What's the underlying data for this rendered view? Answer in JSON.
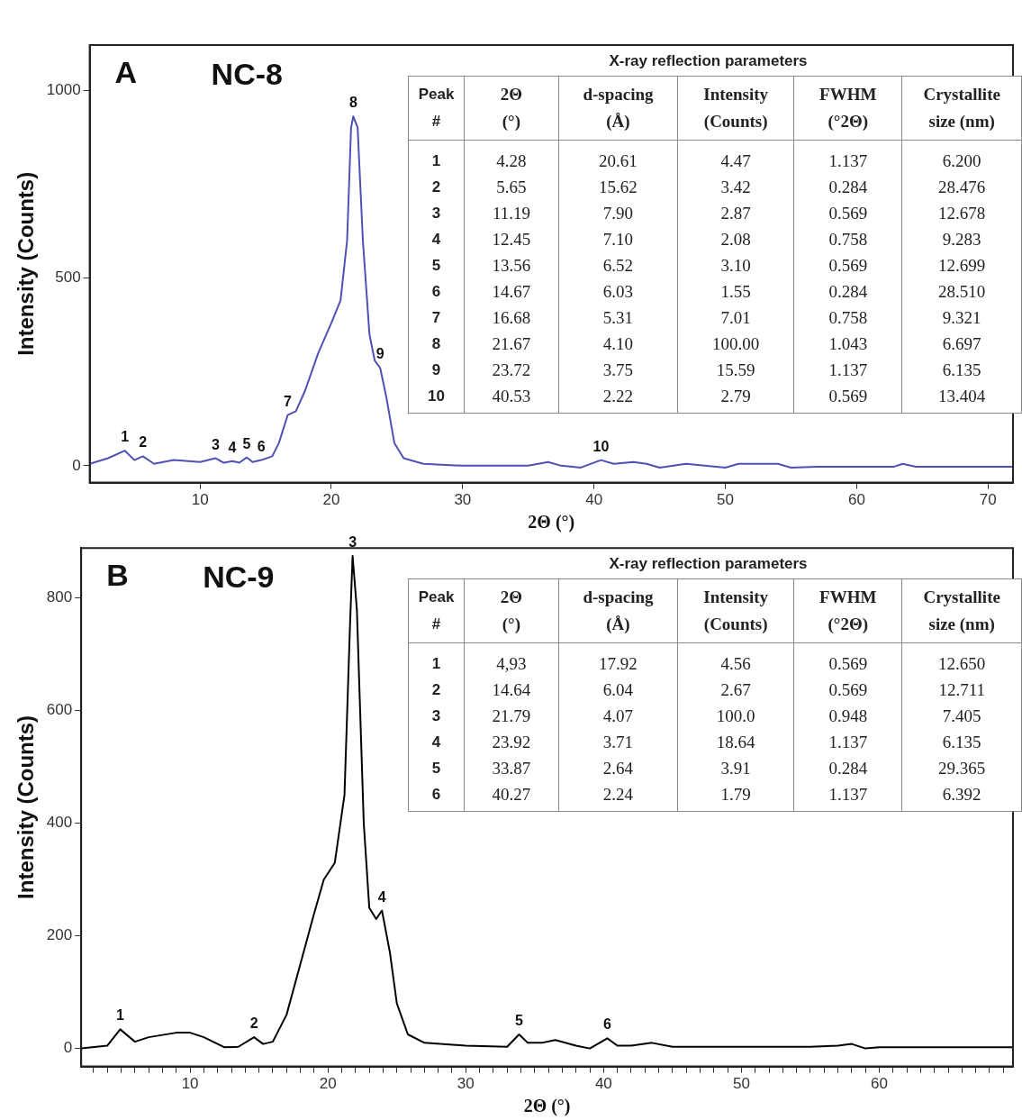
{
  "chart_data": [
    {
      "type": "line",
      "title": "NC-8",
      "xlabel": "2Θ (°)",
      "ylabel": "Intensity (Counts)",
      "marker": "none",
      "xlim": [
        1.6,
        71.9
      ],
      "xticks": [
        10,
        20,
        30,
        40,
        50,
        60,
        70
      ],
      "ylim": [
        -45,
        1120
      ],
      "yticks": [
        0,
        500,
        1000
      ],
      "x": [
        1.6,
        3,
        4.28,
        5,
        5.65,
        6.5,
        8,
        10,
        11.19,
        11.8,
        12.45,
        13,
        13.56,
        14,
        14.67,
        15.5,
        16,
        16.68,
        17.3,
        18,
        19,
        20,
        20.7,
        21.2,
        21.5,
        21.67,
        22,
        22.4,
        22.9,
        23.3,
        23.72,
        24.2,
        24.8,
        25.5,
        27,
        30,
        35,
        36.5,
        37.5,
        39,
        40.53,
        41.5,
        43,
        44,
        45,
        47,
        50,
        51,
        54,
        55,
        57,
        60,
        62.8,
        63.5,
        64.5,
        71.9
      ],
      "series": [
        {
          "color": "#5050b4",
          "values": [
            5,
            20,
            40,
            15,
            25,
            5,
            15,
            10,
            20,
            8,
            12,
            8,
            22,
            10,
            15,
            25,
            60,
            135,
            145,
            200,
            300,
            380,
            440,
            600,
            900,
            930,
            900,
            600,
            350,
            280,
            260,
            180,
            60,
            20,
            5,
            0,
            0,
            10,
            0,
            -5,
            15,
            5,
            10,
            5,
            -5,
            5,
            -5,
            5,
            5,
            -5,
            -3,
            -3,
            -3,
            5,
            -3,
            -3
          ]
        }
      ],
      "annotations": [
        "A",
        "X-ray reflection parameters",
        "Peak #",
        "2Θ (°)",
        "d-spacing (Å)",
        "Intensity (Counts)",
        "FWHM (°2Θ)",
        "Crystallite size (nm)",
        "1",
        "4.28",
        "20.61",
        "4.47",
        "1.137",
        "6.200",
        "2",
        "5.65",
        "15.62",
        "3.42",
        "0.284",
        "28.476",
        "3",
        "11.19",
        "7.90",
        "2.87",
        "0.569",
        "12.678",
        "4",
        "12.45",
        "7.10",
        "2.08",
        "0.758",
        "9.283",
        "5",
        "13.56",
        "6.52",
        "3.10",
        "0.569",
        "12.699",
        "6",
        "14.67",
        "6.03",
        "1.55",
        "0.284",
        "28.510",
        "7",
        "16.68",
        "5.31",
        "7.01",
        "0.758",
        "9.321",
        "8",
        "21.67",
        "4.10",
        "100.00",
        "1.043",
        "6.697",
        "9",
        "23.72",
        "3.75",
        "15.59",
        "1.137",
        "6.135",
        "10",
        "40.53",
        "2.22",
        "2.79",
        "0.569",
        "13.404",
        {
          "text": "1",
          "x": 4.28,
          "y": 40
        },
        {
          "text": "2",
          "x": 5.65,
          "y": 25
        },
        {
          "text": "3",
          "x": 11.19,
          "y": 20
        },
        {
          "text": "4",
          "x": 12.45,
          "y": 12
        },
        {
          "text": "5",
          "x": 13.56,
          "y": 22
        },
        {
          "text": "6",
          "x": 14.67,
          "y": 15
        },
        {
          "text": "7",
          "x": 16.68,
          "y": 135
        },
        {
          "text": "8",
          "x": 21.67,
          "y": 930
        },
        {
          "text": "9",
          "x": 23.72,
          "y": 260
        },
        {
          "text": "10",
          "x": 40.53,
          "y": 15
        }
      ]
    },
    {
      "type": "line",
      "title": "NC-9",
      "xlabel": "2Θ (°)",
      "ylabel": "Intensity (Counts)",
      "marker": "none",
      "xlim": [
        2.1,
        69.7
      ],
      "xticks": [
        {
          "value": 3,
          "label": null
        },
        {
          "value": 4,
          "label": null
        },
        {
          "value": 5,
          "label": null
        },
        {
          "value": 6,
          "label": null
        },
        {
          "value": 7,
          "label": null
        },
        {
          "value": 8,
          "label": null
        },
        {
          "value": 9,
          "label": null
        },
        10,
        {
          "value": 11,
          "label": null
        },
        {
          "value": 12,
          "label": null
        },
        {
          "value": 13,
          "label": null
        },
        {
          "value": 14,
          "label": null
        },
        {
          "value": 15,
          "label": null
        },
        {
          "value": 16,
          "label": null
        },
        {
          "value": 17,
          "label": null
        },
        {
          "value": 18,
          "label": null
        },
        {
          "value": 19,
          "label": null
        },
        20,
        {
          "value": 21,
          "label": null
        },
        {
          "value": 22,
          "label": null
        },
        {
          "value": 23,
          "label": null
        },
        {
          "value": 24,
          "label": null
        },
        {
          "value": 25,
          "label": null
        },
        {
          "value": 26,
          "label": null
        },
        {
          "value": 27,
          "label": null
        },
        {
          "value": 28,
          "label": null
        },
        {
          "value": 29,
          "label": null
        },
        30,
        {
          "value": 31,
          "label": null
        },
        {
          "value": 32,
          "label": null
        },
        {
          "value": 33,
          "label": null
        },
        {
          "value": 34,
          "label": null
        },
        {
          "value": 35,
          "label": null
        },
        {
          "value": 36,
          "label": null
        },
        {
          "value": 37,
          "label": null
        },
        {
          "value": 38,
          "label": null
        },
        {
          "value": 39,
          "label": null
        },
        40,
        {
          "value": 41,
          "label": null
        },
        {
          "value": 42,
          "label": null
        },
        {
          "value": 43,
          "label": null
        },
        {
          "value": 44,
          "label": null
        },
        {
          "value": 45,
          "label": null
        },
        {
          "value": 46,
          "label": null
        },
        {
          "value": 47,
          "label": null
        },
        {
          "value": 48,
          "label": null
        },
        {
          "value": 49,
          "label": null
        },
        50,
        {
          "value": 51,
          "label": null
        },
        {
          "value": 52,
          "label": null
        },
        {
          "value": 53,
          "label": null
        },
        {
          "value": 54,
          "label": null
        },
        {
          "value": 55,
          "label": null
        },
        {
          "value": 56,
          "label": null
        },
        {
          "value": 57,
          "label": null
        },
        {
          "value": 58,
          "label": null
        },
        {
          "value": 59,
          "label": null
        },
        60,
        {
          "value": 61,
          "label": null
        },
        {
          "value": 62,
          "label": null
        },
        {
          "value": 63,
          "label": null
        },
        {
          "value": 64,
          "label": null
        },
        {
          "value": 65,
          "label": null
        },
        {
          "value": 66,
          "label": null
        },
        {
          "value": 67,
          "label": null
        },
        {
          "value": 68,
          "label": null
        },
        {
          "value": 69,
          "label": null
        }
      ],
      "ylim": [
        -32,
        889
      ],
      "yticks": [
        0,
        200,
        400,
        600,
        800
      ],
      "x": [
        2.1,
        4,
        4.93,
        6,
        7,
        9,
        10,
        11,
        12.5,
        13.5,
        14.64,
        15.3,
        16,
        17,
        18,
        19,
        19.7,
        20.5,
        21.2,
        21.6,
        21.79,
        22.1,
        22.6,
        23,
        23.5,
        23.92,
        24.5,
        25,
        25.8,
        27,
        30,
        33,
        33.87,
        34.5,
        35.5,
        36.5,
        38,
        39,
        40.27,
        41,
        42,
        43.5,
        45,
        55,
        57,
        58,
        59,
        60,
        69.7
      ],
      "series": [
        {
          "color": "#000000",
          "values": [
            0,
            5,
            34,
            12,
            20,
            28,
            28,
            20,
            2,
            3,
            20,
            8,
            12,
            60,
            150,
            240,
            300,
            330,
            450,
            750,
            875,
            780,
            400,
            250,
            230,
            245,
            170,
            80,
            25,
            10,
            5,
            3,
            25,
            10,
            10,
            15,
            5,
            0,
            18,
            5,
            5,
            10,
            3,
            3,
            5,
            8,
            0,
            2,
            2
          ]
        }
      ],
      "annotations": [
        "B",
        "X-ray reflection parameters",
        "Peak #",
        "2Θ (°)",
        "d-spacing (Å)",
        "Intensity (Counts)",
        "FWHM (°2Θ)",
        "Crystallite size (nm)",
        "1",
        "4,93",
        "17.92",
        "4.56",
        "0.569",
        "12.650",
        "2",
        "14.64",
        "6.04",
        "2.67",
        "0.569",
        "12.711",
        "3",
        "21.79",
        "4.07",
        "100.0",
        "0.948",
        "7.405",
        "4",
        "23.92",
        "3.71",
        "18.64",
        "1.137",
        "6.135",
        "5",
        "33.87",
        "2.64",
        "3.91",
        "0.284",
        "29.365",
        "6",
        "40.27",
        "2.24",
        "1.79",
        "1.137",
        "6.392",
        {
          "text": "1",
          "x": 4.93,
          "y": 34
        },
        {
          "text": "2",
          "x": 14.64,
          "y": 20
        },
        {
          "text": "3",
          "x": 21.79,
          "y": 875
        },
        {
          "text": "4",
          "x": 23.92,
          "y": 245
        },
        {
          "text": "5",
          "x": 33.87,
          "y": 25
        },
        {
          "text": "6",
          "x": 40.27,
          "y": 18
        }
      ]
    }
  ]
}
